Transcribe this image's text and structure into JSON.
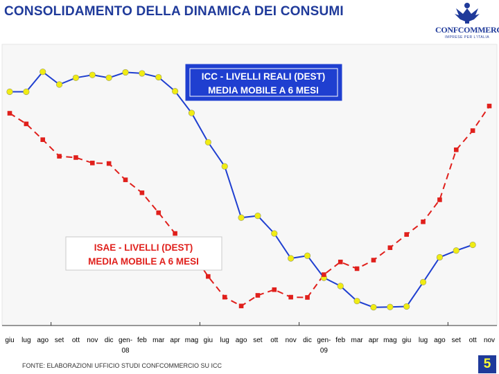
{
  "page": {
    "title": "CONSOLIDAMENTO DELLA DINAMICA DEI CONSUMI",
    "logo": {
      "name": "CONFCOMMERCIO",
      "subtitle": "IMPRESE PER L'ITALIA"
    },
    "footer": "FONTE: ELABORAZIONI UFFICIO STUDI CONFCOMMERCIO SU ICC",
    "page_number": "5"
  },
  "colors": {
    "title": "#1f3a9a",
    "icc": "#1f3fd0",
    "isae": "#e0201c",
    "marker_fill": "#f0ec14",
    "box_blue": "#1f3fd0",
    "page_bg": "#1f3a9a",
    "page_text": "#ffff33"
  },
  "chart_data": {
    "type": "line",
    "categories": [
      "giu",
      "lug",
      "ago",
      "set",
      "ott",
      "nov",
      "dic",
      "gen-08",
      "feb",
      "mar",
      "apr",
      "mag",
      "giu",
      "lug",
      "ago",
      "set",
      "ott",
      "nov",
      "dic",
      "gen-09",
      "feb",
      "mar",
      "apr",
      "mag",
      "giu",
      "lug",
      "ago",
      "set",
      "ott",
      "nov"
    ],
    "tick_labels": [
      {
        "line1": "giu",
        "line2": ""
      },
      {
        "line1": "lug",
        "line2": ""
      },
      {
        "line1": "ago",
        "line2": ""
      },
      {
        "line1": "set",
        "line2": ""
      },
      {
        "line1": "ott",
        "line2": ""
      },
      {
        "line1": "nov",
        "line2": ""
      },
      {
        "line1": "dic",
        "line2": ""
      },
      {
        "line1": "gen-",
        "line2": "08"
      },
      {
        "line1": "feb",
        "line2": ""
      },
      {
        "line1": "mar",
        "line2": ""
      },
      {
        "line1": "apr",
        "line2": ""
      },
      {
        "line1": "mag",
        "line2": ""
      },
      {
        "line1": "giu",
        "line2": ""
      },
      {
        "line1": "lug",
        "line2": ""
      },
      {
        "line1": "ago",
        "line2": ""
      },
      {
        "line1": "set",
        "line2": ""
      },
      {
        "line1": "ott",
        "line2": ""
      },
      {
        "line1": "nov",
        "line2": ""
      },
      {
        "line1": "dic",
        "line2": ""
      },
      {
        "line1": "gen-",
        "line2": "09"
      },
      {
        "line1": "feb",
        "line2": ""
      },
      {
        "line1": "mar",
        "line2": ""
      },
      {
        "line1": "apr",
        "line2": ""
      },
      {
        "line1": "mag",
        "line2": ""
      },
      {
        "line1": "giu",
        "line2": ""
      },
      {
        "line1": "lug",
        "line2": ""
      },
      {
        "line1": "ago",
        "line2": ""
      },
      {
        "line1": "set",
        "line2": ""
      },
      {
        "line1": "ott",
        "line2": ""
      },
      {
        "line1": "nov",
        "line2": ""
      }
    ],
    "ylim": [
      0,
      100
    ],
    "series": [
      {
        "name": "ICC - LIVELLI REALI (DEST) MEDIA MOBILE A 6 MESI",
        "label_line1": "ICC - LIVELLI REALI (DEST)",
        "label_line2": "MEDIA MOBILE A 6 MESI",
        "style": "solid",
        "values": [
          86.5,
          86.5,
          94.2,
          89.3,
          91.9,
          93.0,
          91.9,
          94.0,
          93.6,
          92.1,
          86.7,
          78.3,
          67.0,
          57.7,
          37.9,
          38.6,
          31.8,
          22.2,
          23.2,
          14.7,
          11.5,
          5.7,
          3.3,
          3.4,
          3.6,
          13.0,
          22.6,
          25.2,
          27.4,
          null
        ]
      },
      {
        "name": "ISAE - LIVELLI (DEST) MEDIA MOBILE A 6 MESI",
        "label_line1": "ISAE - LIVELLI (DEST)",
        "label_line2": "MEDIA MOBILE A 6 MESI",
        "style": "dashed",
        "values": [
          78.2,
          74.1,
          68.0,
          61.6,
          61.1,
          59.0,
          58.8,
          52.5,
          47.5,
          39.8,
          31.8,
          24.7,
          15.2,
          7.2,
          3.8,
          7.9,
          10.1,
          7.2,
          7.1,
          15.9,
          20.8,
          18.2,
          21.5,
          26.3,
          31.4,
          36.3,
          44.8,
          64.1,
          71.5,
          81.0
        ]
      }
    ]
  }
}
